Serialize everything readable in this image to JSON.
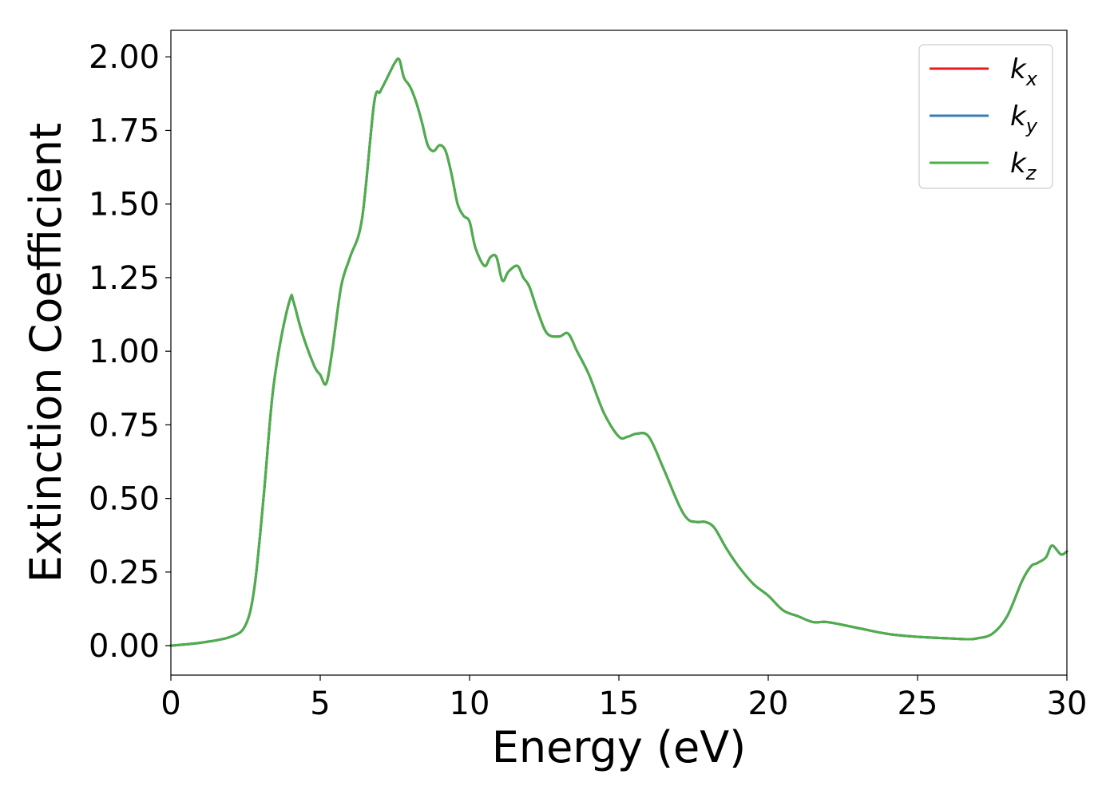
{
  "chart_data": {
    "type": "line",
    "xlabel": "Energy (eV)",
    "ylabel": "Extinction Coefficient",
    "xlim": [
      0,
      30
    ],
    "ylim": [
      -0.1,
      2.09
    ],
    "x_ticks": [
      "0",
      "5",
      "10",
      "15",
      "20",
      "25",
      "30"
    ],
    "y_ticks": [
      "0.00",
      "0.25",
      "0.50",
      "0.75",
      "1.00",
      "1.25",
      "1.50",
      "1.75",
      "2.00"
    ],
    "grid": false,
    "legend_position": "top-right",
    "series": [
      {
        "name": "k_x",
        "label_main": "k",
        "label_sub": "x",
        "color": "#e41a1c",
        "x": [
          0,
          1,
          2,
          2.5,
          2.8,
          3.1,
          3.4,
          3.7,
          4.0,
          4.1,
          4.4,
          4.8,
          5.0,
          5.2,
          5.4,
          5.7,
          6.0,
          6.4,
          6.8,
          7.0,
          7.2,
          7.5,
          7.65,
          7.8,
          8.0,
          8.2,
          8.4,
          8.6,
          8.8,
          9.0,
          9.2,
          9.4,
          9.6,
          9.8,
          10.0,
          10.2,
          10.5,
          10.7,
          10.9,
          11.1,
          11.3,
          11.6,
          11.8,
          12.0,
          12.3,
          12.6,
          13.0,
          13.3,
          13.6,
          14.0,
          14.5,
          15.0,
          15.3,
          15.6,
          16.0,
          16.5,
          17.0,
          17.3,
          17.6,
          17.9,
          18.2,
          18.6,
          19.0,
          19.5,
          20.0,
          20.5,
          21.0,
          21.5,
          22.0,
          23.0,
          24.0,
          25.0,
          26.0,
          26.7,
          27.0,
          27.5,
          28.0,
          28.5,
          28.8,
          29.0,
          29.3,
          29.5,
          29.8,
          30.0
        ],
        "y": [
          0.0,
          0.01,
          0.03,
          0.07,
          0.2,
          0.5,
          0.85,
          1.05,
          1.18,
          1.17,
          1.06,
          0.95,
          0.92,
          0.89,
          1.0,
          1.22,
          1.32,
          1.45,
          1.84,
          1.88,
          1.92,
          1.98,
          1.99,
          1.93,
          1.9,
          1.85,
          1.78,
          1.7,
          1.68,
          1.7,
          1.68,
          1.6,
          1.5,
          1.46,
          1.44,
          1.35,
          1.29,
          1.32,
          1.32,
          1.24,
          1.27,
          1.29,
          1.25,
          1.22,
          1.13,
          1.06,
          1.05,
          1.06,
          1.0,
          0.92,
          0.79,
          0.71,
          0.71,
          0.72,
          0.71,
          0.6,
          0.48,
          0.43,
          0.42,
          0.42,
          0.4,
          0.33,
          0.27,
          0.21,
          0.17,
          0.12,
          0.1,
          0.08,
          0.08,
          0.06,
          0.04,
          0.03,
          0.025,
          0.022,
          0.025,
          0.04,
          0.1,
          0.22,
          0.27,
          0.28,
          0.3,
          0.34,
          0.31,
          0.32
        ]
      },
      {
        "name": "k_y",
        "label_main": "k",
        "label_sub": "y",
        "color": "#377eb8",
        "x": [
          0,
          1,
          2,
          2.5,
          2.8,
          3.1,
          3.4,
          3.7,
          4.0,
          4.1,
          4.4,
          4.8,
          5.0,
          5.2,
          5.4,
          5.7,
          6.0,
          6.4,
          6.8,
          7.0,
          7.2,
          7.5,
          7.65,
          7.8,
          8.0,
          8.2,
          8.4,
          8.6,
          8.8,
          9.0,
          9.2,
          9.4,
          9.6,
          9.8,
          10.0,
          10.2,
          10.5,
          10.7,
          10.9,
          11.1,
          11.3,
          11.6,
          11.8,
          12.0,
          12.3,
          12.6,
          13.0,
          13.3,
          13.6,
          14.0,
          14.5,
          15.0,
          15.3,
          15.6,
          16.0,
          16.5,
          17.0,
          17.3,
          17.6,
          17.9,
          18.2,
          18.6,
          19.0,
          19.5,
          20.0,
          20.5,
          21.0,
          21.5,
          22.0,
          23.0,
          24.0,
          25.0,
          26.0,
          26.7,
          27.0,
          27.5,
          28.0,
          28.5,
          28.8,
          29.0,
          29.3,
          29.5,
          29.8,
          30.0
        ],
        "y": [
          0.0,
          0.01,
          0.03,
          0.07,
          0.2,
          0.5,
          0.85,
          1.05,
          1.18,
          1.17,
          1.06,
          0.95,
          0.92,
          0.89,
          1.0,
          1.22,
          1.32,
          1.45,
          1.84,
          1.88,
          1.92,
          1.98,
          1.99,
          1.93,
          1.9,
          1.85,
          1.78,
          1.7,
          1.68,
          1.7,
          1.68,
          1.6,
          1.5,
          1.46,
          1.44,
          1.35,
          1.29,
          1.32,
          1.32,
          1.24,
          1.27,
          1.29,
          1.25,
          1.22,
          1.13,
          1.06,
          1.05,
          1.06,
          1.0,
          0.92,
          0.79,
          0.71,
          0.71,
          0.72,
          0.71,
          0.6,
          0.48,
          0.43,
          0.42,
          0.42,
          0.4,
          0.33,
          0.27,
          0.21,
          0.17,
          0.12,
          0.1,
          0.08,
          0.08,
          0.06,
          0.04,
          0.03,
          0.025,
          0.022,
          0.025,
          0.04,
          0.1,
          0.22,
          0.27,
          0.28,
          0.3,
          0.34,
          0.31,
          0.32
        ]
      },
      {
        "name": "k_z",
        "label_main": "k",
        "label_sub": "z",
        "color": "#4daf4a",
        "x": [
          0,
          1,
          2,
          2.5,
          2.8,
          3.1,
          3.4,
          3.7,
          4.0,
          4.1,
          4.4,
          4.8,
          5.0,
          5.2,
          5.4,
          5.7,
          6.0,
          6.4,
          6.8,
          7.0,
          7.2,
          7.5,
          7.65,
          7.8,
          8.0,
          8.2,
          8.4,
          8.6,
          8.8,
          9.0,
          9.2,
          9.4,
          9.6,
          9.8,
          10.0,
          10.2,
          10.5,
          10.7,
          10.9,
          11.1,
          11.3,
          11.6,
          11.8,
          12.0,
          12.3,
          12.6,
          13.0,
          13.3,
          13.6,
          14.0,
          14.5,
          15.0,
          15.3,
          15.6,
          16.0,
          16.5,
          17.0,
          17.3,
          17.6,
          17.9,
          18.2,
          18.6,
          19.0,
          19.5,
          20.0,
          20.5,
          21.0,
          21.5,
          22.0,
          23.0,
          24.0,
          25.0,
          26.0,
          26.7,
          27.0,
          27.5,
          28.0,
          28.5,
          28.8,
          29.0,
          29.3,
          29.5,
          29.8,
          30.0
        ],
        "y": [
          0.0,
          0.01,
          0.03,
          0.07,
          0.2,
          0.5,
          0.85,
          1.05,
          1.18,
          1.17,
          1.06,
          0.95,
          0.92,
          0.89,
          1.0,
          1.22,
          1.32,
          1.45,
          1.84,
          1.88,
          1.92,
          1.98,
          1.99,
          1.93,
          1.9,
          1.85,
          1.78,
          1.7,
          1.68,
          1.7,
          1.68,
          1.6,
          1.5,
          1.46,
          1.44,
          1.35,
          1.29,
          1.32,
          1.32,
          1.24,
          1.27,
          1.29,
          1.25,
          1.22,
          1.13,
          1.06,
          1.05,
          1.06,
          1.0,
          0.92,
          0.79,
          0.71,
          0.71,
          0.72,
          0.71,
          0.6,
          0.48,
          0.43,
          0.42,
          0.42,
          0.4,
          0.33,
          0.27,
          0.21,
          0.17,
          0.12,
          0.1,
          0.08,
          0.08,
          0.06,
          0.04,
          0.03,
          0.025,
          0.022,
          0.025,
          0.04,
          0.1,
          0.22,
          0.27,
          0.28,
          0.3,
          0.34,
          0.31,
          0.32
        ]
      }
    ]
  }
}
